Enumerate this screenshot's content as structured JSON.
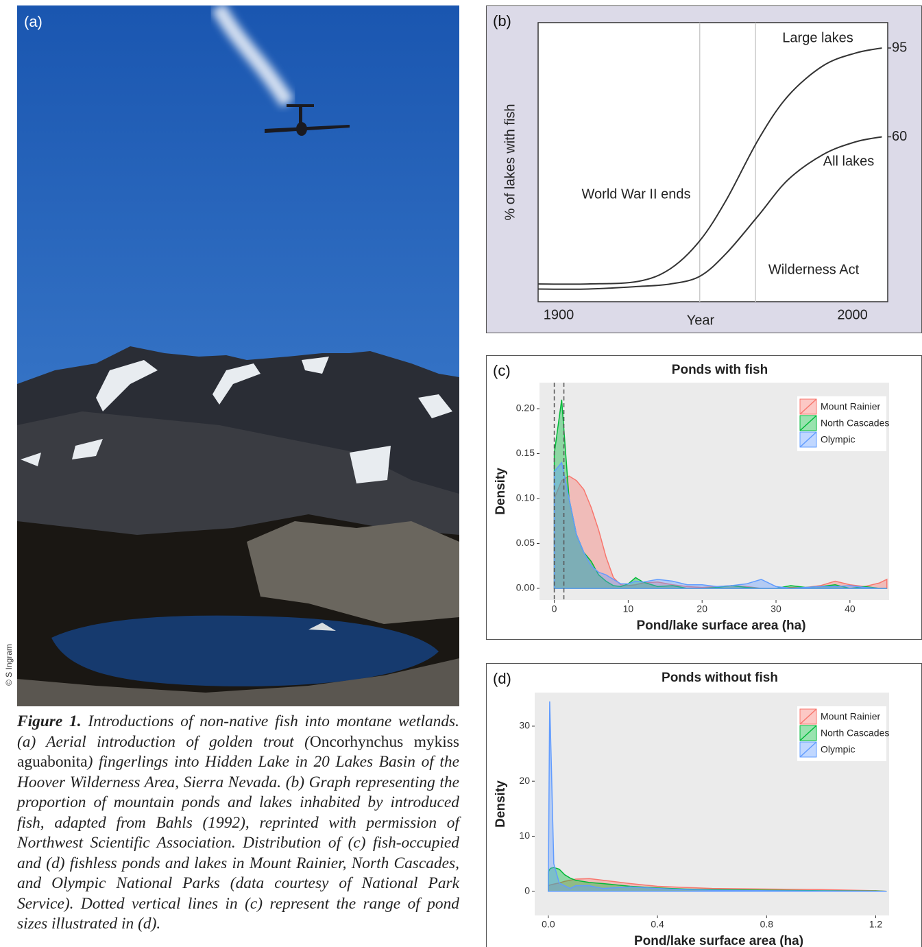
{
  "photo": {
    "label": "(a)",
    "credit": "© S Ingram"
  },
  "caption": {
    "label": "Figure 1.",
    "parts": [
      {
        "text": " Introductions of non-native fish into montane wetlands. (a) Aerial introduction of golden trout (",
        "style": "italic"
      },
      {
        "text": "Oncorhynchus mykiss aguabonita",
        "style": "normal"
      },
      {
        "text": ") fingerlings into Hidden Lake in 20 Lakes Basin of the Hoover Wilderness Area, Sierra Nevada. (b) Graph representing the proportion of mountain ponds and lakes inhabited by introduced fish, adapted from Bahls (1992), reprinted with permission of Northwest Scientific Association. Distribution of (c) fish-occupied and (d) fishless ponds and lakes in Mount Rainier, North Cascades, and Olympic National Parks (data courtesy of National Park Service). Dotted vertical lines in (c) represent the range of pond sizes illustrated in (d).",
        "style": "italic"
      }
    ]
  },
  "chart_data": [
    {
      "type": "line",
      "label": "(b)",
      "xlabel": "Year",
      "ylabel": "% of lakes with fish",
      "x": [
        1893,
        1910,
        1927,
        1938,
        1948,
        1957,
        1968,
        1978,
        1990,
        2001,
        2010
      ],
      "series": [
        {
          "name": "Large lakes",
          "color": "#333333",
          "values": [
            2,
            2,
            3,
            8,
            19,
            35,
            59,
            76,
            88,
            93,
            95
          ],
          "value_labels": [
            null,
            null,
            null,
            null,
            null,
            null,
            null,
            null,
            null,
            null,
            "95"
          ]
        },
        {
          "name": "All lakes",
          "color": "#333333",
          "values": [
            0,
            0,
            1,
            2,
            5,
            14,
            29,
            43,
            53,
            58,
            60
          ],
          "value_labels": [
            null,
            null,
            null,
            null,
            null,
            null,
            null,
            null,
            null,
            null,
            "60"
          ]
        }
      ],
      "vlines": [
        {
          "value": 1948,
          "label": "World War II ends"
        },
        {
          "value": 1967,
          "label": "Wilderness Act"
        }
      ],
      "xlim": [
        1893,
        2012
      ],
      "ylim": [
        -5,
        105
      ],
      "xticks": [
        1900,
        2000
      ]
    },
    {
      "type": "area",
      "label": "(c)",
      "title": "Ponds with fish",
      "xlabel": "Pond/lake surface area (ha)",
      "ylabel": "Density",
      "x": [
        0,
        1,
        2,
        3,
        4,
        5,
        6,
        7,
        8,
        9,
        10,
        11,
        12,
        14,
        16,
        18,
        20,
        22,
        24,
        26,
        28,
        30,
        32,
        34,
        36,
        38,
        40,
        42,
        44,
        45
      ],
      "series": [
        {
          "name": "Mount Rainier",
          "color": "#f8766d",
          "values": [
            0.1,
            0.12,
            0.125,
            0.12,
            0.11,
            0.09,
            0.065,
            0.035,
            0.012,
            0.004,
            0.003,
            0.004,
            0.006,
            0.007,
            0.004,
            0.002,
            0.001,
            0.002,
            0.003,
            0.002,
            0,
            0,
            0.001,
            0.001,
            0.003,
            0.008,
            0.004,
            0.002,
            0.006,
            0.01
          ]
        },
        {
          "name": "North Cascades",
          "color": "#00ba38",
          "values": [
            0.15,
            0.21,
            0.1,
            0.06,
            0.04,
            0.03,
            0.015,
            0.008,
            0.003,
            0.002,
            0.005,
            0.012,
            0.007,
            0.002,
            0.003,
            0,
            0,
            0.001,
            0.003,
            0.001,
            0,
            0,
            0.003,
            0.001,
            0.002,
            0.004,
            0,
            0.002,
            0,
            0
          ]
        },
        {
          "name": "Olympic",
          "color": "#619cff",
          "values": [
            0.13,
            0.14,
            0.1,
            0.06,
            0.04,
            0.025,
            0.018,
            0.015,
            0.01,
            0.005,
            0.005,
            0.008,
            0.007,
            0.01,
            0.008,
            0.004,
            0.004,
            0.002,
            0.003,
            0.005,
            0.01,
            0.002,
            0,
            0.001,
            0.002,
            0.002,
            0.003,
            0.001,
            0,
            0
          ]
        }
      ],
      "vlines": [
        0,
        1.3
      ],
      "xlim": [
        -2,
        45.3
      ],
      "ylim": [
        -0.013,
        0.229
      ],
      "xticks": [
        0,
        10,
        20,
        30,
        40
      ],
      "yticks": [
        {
          "value": 0,
          "label": "0.00"
        },
        {
          "value": 0.05,
          "label": "0.05"
        },
        {
          "value": 0.1,
          "label": "0.10"
        },
        {
          "value": 0.15,
          "label": "0.15"
        },
        {
          "value": 0.2,
          "label": "0.20"
        }
      ],
      "legend": "top-right"
    },
    {
      "type": "area",
      "label": "(d)",
      "title": "Ponds without fish",
      "xlabel": "Pond/lake surface area (ha)",
      "ylabel": "Density",
      "x": [
        0,
        0.005,
        0.01,
        0.02,
        0.04,
        0.06,
        0.08,
        0.1,
        0.15,
        0.2,
        0.3,
        0.4,
        0.5,
        0.6,
        0.8,
        1.0,
        1.2,
        1.24
      ],
      "series": [
        {
          "name": "Mount Rainier",
          "color": "#f8766d",
          "values": [
            1.0,
            1.1,
            1.2,
            1.3,
            1.5,
            1.8,
            2.0,
            2.2,
            2.3,
            2.0,
            1.4,
            0.9,
            0.7,
            0.5,
            0.4,
            0.3,
            0.1,
            0
          ]
        },
        {
          "name": "North Cascades",
          "color": "#00ba38",
          "values": [
            3.5,
            4.0,
            4.2,
            4.3,
            4.0,
            3.0,
            2.4,
            2.0,
            1.6,
            1.4,
            0.9,
            0.6,
            0.4,
            0.3,
            0.2,
            0.1,
            0.05,
            0
          ]
        },
        {
          "name": "Olympic",
          "color": "#619cff",
          "values": [
            2,
            34.5,
            25,
            5,
            1.5,
            1.0,
            0.5,
            1,
            1.0,
            0.5,
            0.8,
            0.5,
            0.3,
            0.2,
            0.1,
            0.05,
            0,
            0
          ]
        }
      ],
      "xlim": [
        -0.05,
        1.249
      ],
      "ylim": [
        -4.4,
        36.1
      ],
      "xticks": [
        {
          "value": 0,
          "label": "0.0"
        },
        0.4,
        0.8,
        1.2
      ],
      "yticks": [
        0,
        10,
        20,
        30
      ],
      "legend": "top-right"
    }
  ]
}
